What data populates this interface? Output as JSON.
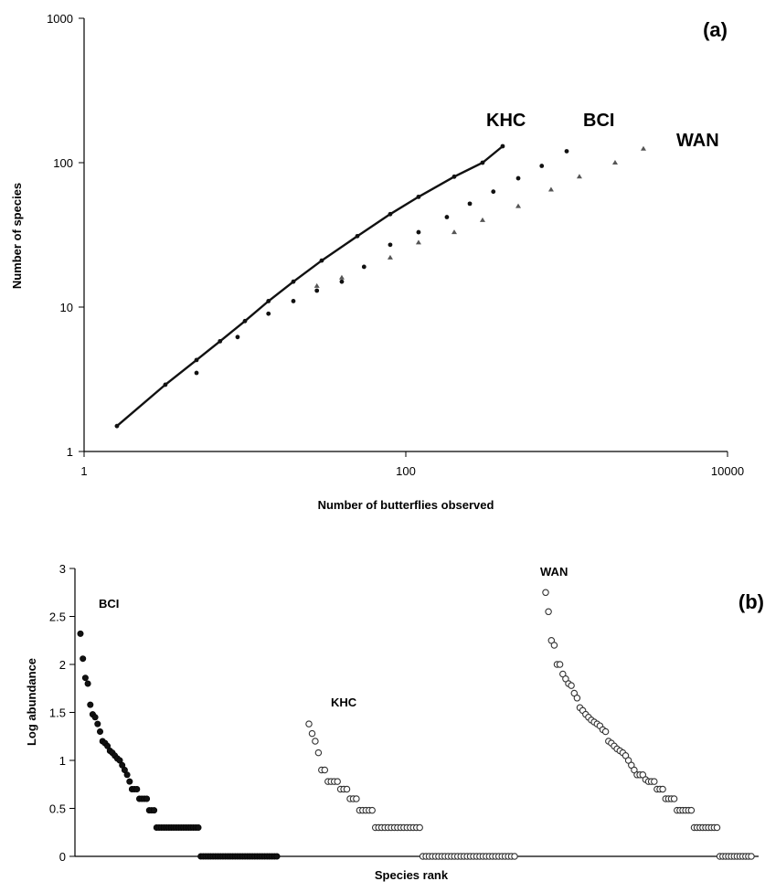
{
  "chart_data": [
    {
      "type": "line",
      "panel_label": "(a)",
      "xlabel": "Number of butterflies observed",
      "ylabel": "Number of species",
      "xscale": "log",
      "yscale": "log",
      "xlim": [
        1,
        10000
      ],
      "ylim": [
        1,
        1000
      ],
      "x_ticks": [
        "1",
        "100",
        "10000"
      ],
      "y_ticks": [
        "1",
        "10",
        "100",
        "1000"
      ],
      "grid": false,
      "series": [
        {
          "name": "KHC",
          "marker": "line-with-points",
          "color": "#111111",
          "x": [
            1.6,
            3.2,
            5,
            7,
            10,
            14,
            20,
            30,
            50,
            80,
            120,
            200,
            300,
            400
          ],
          "y": [
            1.5,
            2.9,
            4.3,
            5.8,
            8,
            11,
            15,
            21,
            31,
            44,
            58,
            80,
            100,
            130
          ]
        },
        {
          "name": "BCI",
          "marker": "dots",
          "color": "#111111",
          "x": [
            5,
            9,
            14,
            20,
            28,
            40,
            55,
            80,
            120,
            180,
            250,
            350,
            500,
            700,
            1000
          ],
          "y": [
            3.5,
            6.2,
            9,
            11,
            13,
            15,
            19,
            27,
            33,
            42,
            52,
            63,
            78,
            95,
            120
          ]
        },
        {
          "name": "WAN",
          "marker": "triangles",
          "color": "#555555",
          "x": [
            28,
            40,
            80,
            120,
            200,
            300,
            500,
            800,
            1200,
            2000,
            3000
          ],
          "y": [
            14,
            16,
            22,
            28,
            33,
            40,
            50,
            65,
            80,
            100,
            125
          ]
        }
      ]
    },
    {
      "type": "scatter",
      "panel_label": "(b)",
      "xlabel": "Species rank",
      "ylabel": "Log abundance",
      "ylim": [
        0,
        3
      ],
      "y_ticks": [
        "0",
        "0.5",
        "1",
        "1.5",
        "2",
        "2.5",
        "3"
      ],
      "grid": false,
      "series": [
        {
          "name": "BCI",
          "marker": "filled-circle",
          "color": "#111111",
          "values": [
            2.32,
            2.06,
            1.86,
            1.8,
            1.58,
            1.48,
            1.45,
            1.38,
            1.3,
            1.2,
            1.18,
            1.15,
            1.1,
            1.08,
            1.05,
            1.02,
            1.0,
            0.95,
            0.9,
            0.85,
            0.78,
            0.7,
            0.7,
            0.7,
            0.6,
            0.6,
            0.6,
            0.6,
            0.48,
            0.48,
            0.48,
            0.3,
            0.3,
            0.3,
            0.3,
            0.3,
            0.3,
            0.3,
            0.3,
            0.3,
            0.3,
            0.3,
            0.3,
            0.3,
            0.3,
            0.3,
            0.3,
            0.3,
            0.3,
            0,
            0,
            0,
            0,
            0,
            0,
            0,
            0,
            0,
            0,
            0,
            0,
            0,
            0,
            0,
            0,
            0,
            0,
            0,
            0,
            0,
            0,
            0,
            0,
            0,
            0,
            0,
            0,
            0,
            0,
            0,
            0
          ]
        },
        {
          "name": "KHC",
          "marker": "open-circle",
          "color": "#333333",
          "values": [
            1.38,
            1.28,
            1.2,
            1.08,
            0.9,
            0.9,
            0.78,
            0.78,
            0.78,
            0.78,
            0.7,
            0.7,
            0.7,
            0.6,
            0.6,
            0.6,
            0.48,
            0.48,
            0.48,
            0.48,
            0.48,
            0.3,
            0.3,
            0.3,
            0.3,
            0.3,
            0.3,
            0.3,
            0.3,
            0.3,
            0.3,
            0.3,
            0.3,
            0.3,
            0.3,
            0.3,
            0,
            0,
            0,
            0,
            0,
            0,
            0,
            0,
            0,
            0,
            0,
            0,
            0,
            0,
            0,
            0,
            0,
            0,
            0,
            0,
            0,
            0,
            0,
            0,
            0,
            0,
            0,
            0,
            0,
            0
          ]
        },
        {
          "name": "WAN",
          "marker": "open-circle",
          "color": "#333333",
          "values": [
            2.75,
            2.55,
            2.25,
            2.2,
            2.0,
            2.0,
            1.9,
            1.85,
            1.8,
            1.78,
            1.7,
            1.65,
            1.55,
            1.52,
            1.48,
            1.45,
            1.42,
            1.4,
            1.38,
            1.36,
            1.32,
            1.3,
            1.2,
            1.18,
            1.15,
            1.12,
            1.1,
            1.08,
            1.05,
            1.0,
            0.95,
            0.9,
            0.85,
            0.85,
            0.85,
            0.8,
            0.78,
            0.78,
            0.78,
            0.7,
            0.7,
            0.7,
            0.6,
            0.6,
            0.6,
            0.6,
            0.48,
            0.48,
            0.48,
            0.48,
            0.48,
            0.48,
            0.3,
            0.3,
            0.3,
            0.3,
            0.3,
            0.3,
            0.3,
            0.3,
            0.3,
            0,
            0,
            0,
            0,
            0,
            0,
            0,
            0,
            0,
            0,
            0,
            0
          ]
        }
      ]
    }
  ]
}
